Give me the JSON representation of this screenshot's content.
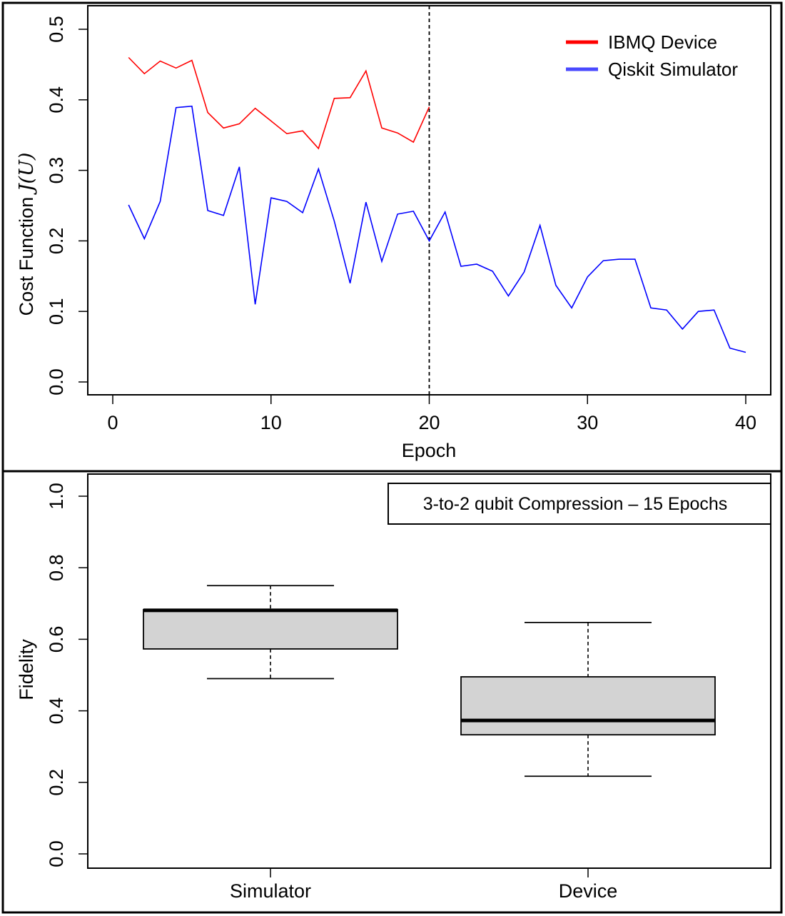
{
  "chart_data": [
    {
      "type": "line",
      "xlabel": "Epoch",
      "ylabel": "Cost Function J(U)",
      "ylabel_prefix": "Cost Function ",
      "ylabel_math": "J(U)",
      "xlim": [
        -1,
        41
      ],
      "ylim": [
        0,
        0.5
      ],
      "xticks": [
        0,
        10,
        20,
        30,
        40
      ],
      "xtick_labels": [
        "0",
        "10",
        "20",
        "30",
        "40"
      ],
      "yticks": [
        0,
        0.1,
        0.2,
        0.3,
        0.4,
        0.5
      ],
      "ytick_labels": [
        "0.0",
        "0.1",
        "0.2",
        "0.3",
        "0.4",
        "0.5"
      ],
      "vline": {
        "x": 20,
        "style": "dashed"
      },
      "legend_position": "top-right",
      "series": [
        {
          "name": "IBMQ Device",
          "color": "#ff0000",
          "x": [
            1,
            2,
            3,
            4,
            5,
            6,
            7,
            8,
            9,
            10,
            11,
            12,
            13,
            14,
            15,
            16,
            17,
            18,
            19,
            20
          ],
          "values": [
            0.46,
            0.437,
            0.455,
            0.445,
            0.456,
            0.382,
            0.36,
            0.366,
            0.388,
            0.37,
            0.352,
            0.356,
            0.331,
            0.402,
            0.403,
            0.441,
            0.36,
            0.353,
            0.34,
            0.39
          ]
        },
        {
          "name": "Qiskit Simulator",
          "color": "#0000ff",
          "legend_color": "#4a4aff",
          "x": [
            1,
            2,
            3,
            4,
            5,
            6,
            7,
            8,
            9,
            10,
            11,
            12,
            13,
            14,
            15,
            16,
            17,
            18,
            19,
            20,
            21,
            22,
            23,
            24,
            25,
            26,
            27,
            28,
            29,
            30,
            31,
            32,
            33,
            34,
            35,
            36,
            37,
            38,
            39,
            40
          ],
          "values": [
            0.251,
            0.203,
            0.256,
            0.389,
            0.391,
            0.243,
            0.236,
            0.305,
            0.11,
            0.261,
            0.256,
            0.24,
            0.302,
            0.228,
            0.14,
            0.255,
            0.171,
            0.238,
            0.242,
            0.2,
            0.241,
            0.164,
            0.167,
            0.157,
            0.122,
            0.156,
            0.222,
            0.137,
            0.105,
            0.149,
            0.172,
            0.174,
            0.174,
            0.105,
            0.102,
            0.075,
            0.1,
            0.102,
            0.048,
            0.042
          ]
        }
      ]
    },
    {
      "type": "box",
      "ylabel": "Fidelity",
      "xlabel": "",
      "ylim": [
        0,
        1
      ],
      "yticks": [
        0,
        0.2,
        0.4,
        0.6,
        0.8,
        1.0
      ],
      "ytick_labels": [
        "0.0",
        "0.2",
        "0.4",
        "0.6",
        "0.8",
        "1.0"
      ],
      "categories": [
        "Simulator",
        "Device"
      ],
      "box_fill": "#d3d3d3",
      "annotation": "3-to-2 qubit Compression – 15 Epochs",
      "annotation_position": "top-right",
      "boxes": [
        {
          "name": "Simulator",
          "whisker_low": 0.49,
          "q1": 0.573,
          "median": 0.681,
          "q3": 0.683,
          "whisker_high": 0.75
        },
        {
          "name": "Device",
          "whisker_low": 0.217,
          "q1": 0.333,
          "median": 0.373,
          "q3": 0.495,
          "whisker_high": 0.647
        }
      ]
    }
  ]
}
